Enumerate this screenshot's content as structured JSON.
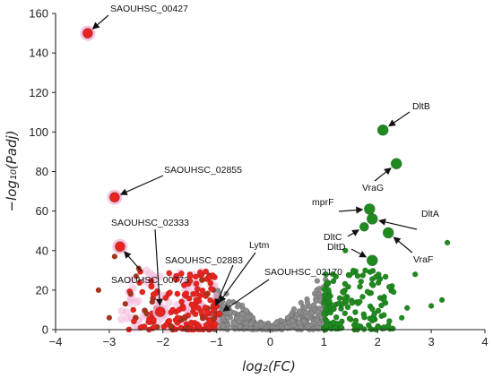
{
  "chart_data": {
    "type": "scatter",
    "title": "",
    "xlabel": "log₂(FC)",
    "ylabel": "−log₁₀(Padj)",
    "xlim": [
      -4,
      4
    ],
    "ylim": [
      0,
      160
    ],
    "xticks": [
      "−4",
      "−3",
      "−2",
      "−1",
      "0",
      "1",
      "2",
      "3",
      "4"
    ],
    "yticks": [
      "0",
      "20",
      "40",
      "60",
      "80",
      "100",
      "120",
      "140",
      "160"
    ],
    "colors": {
      "down": "#e8241f",
      "down_dark": "#a9331d",
      "halo": "#f2b7d8",
      "up": "#1f8a1f",
      "ns": "#8c8c8c"
    },
    "highlighted": [
      {
        "label": "SAOUHSC_00427",
        "x": -3.4,
        "y": 150,
        "group": "down"
      },
      {
        "label": "SAOUHSC_02855",
        "x": -2.9,
        "y": 67,
        "group": "down"
      },
      {
        "label": "SAOUHSC_02333",
        "x": -2.05,
        "y": 9,
        "group": "down"
      },
      {
        "label": "SAOUHSC_00773",
        "x": -2.8,
        "y": 42,
        "group": "down"
      },
      {
        "label": "SAOUHSC_02883",
        "x": -1.05,
        "y": 10,
        "group": "down"
      },
      {
        "label": "Lytm",
        "x": -1.0,
        "y": 12,
        "group": "down"
      },
      {
        "label": "SAOUHSC_02170",
        "x": -0.95,
        "y": 8,
        "group": "down"
      },
      {
        "label": "DltB",
        "x": 2.1,
        "y": 101,
        "group": "up"
      },
      {
        "label": "VraG",
        "x": 2.35,
        "y": 84,
        "group": "up"
      },
      {
        "label": "mprF",
        "x": 1.85,
        "y": 61,
        "group": "up"
      },
      {
        "label": "DltA",
        "x": 1.9,
        "y": 56,
        "group": "up"
      },
      {
        "label": "DltC",
        "x": 1.75,
        "y": 52,
        "group": "up"
      },
      {
        "label": "VraF",
        "x": 2.2,
        "y": 49,
        "group": "up"
      },
      {
        "label": "DltD",
        "x": 1.9,
        "y": 35,
        "group": "up"
      }
    ]
  }
}
